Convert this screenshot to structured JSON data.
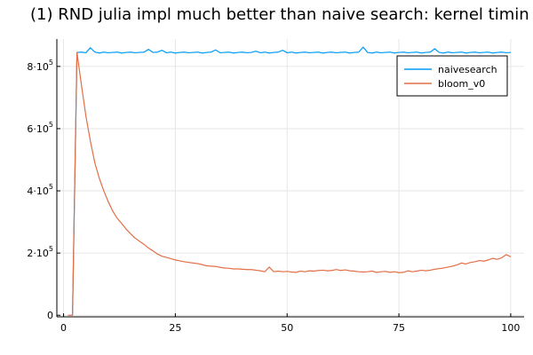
{
  "chart_data": {
    "type": "line",
    "title": "(1) RND julia impl much better than naive search: kernel timin",
    "xlabel": "",
    "ylabel": "",
    "xlim": [
      -1.5,
      103
    ],
    "ylim": [
      -5000,
      888000
    ],
    "x_ticks": [
      {
        "value": 0,
        "label": "0"
      },
      {
        "value": 25,
        "label": "25"
      },
      {
        "value": 50,
        "label": "50"
      },
      {
        "value": 75,
        "label": "75"
      },
      {
        "value": 100,
        "label": "100"
      }
    ],
    "y_ticks": [
      {
        "value": 0,
        "base": "0",
        "exp": ""
      },
      {
        "value": 200000,
        "base": "2·10",
        "exp": "5"
      },
      {
        "value": 400000,
        "base": "4·10",
        "exp": "5"
      },
      {
        "value": 600000,
        "base": "6·10",
        "exp": "5"
      },
      {
        "value": 800000,
        "base": "8·10",
        "exp": "5"
      }
    ],
    "grid": true,
    "legend_position": "top-right",
    "series": [
      {
        "name": "naivesearch",
        "color": "#009AFA",
        "points": [
          [
            2,
            0
          ],
          [
            3,
            845000
          ],
          [
            4,
            846000
          ],
          [
            5,
            844000
          ],
          [
            6,
            860000
          ],
          [
            7,
            846000
          ],
          [
            8,
            843000
          ],
          [
            9,
            846000
          ],
          [
            10,
            844000
          ],
          [
            11,
            845000
          ],
          [
            12,
            846000
          ],
          [
            13,
            843000
          ],
          [
            14,
            845000
          ],
          [
            15,
            846000
          ],
          [
            16,
            844000
          ],
          [
            17,
            845000
          ],
          [
            18,
            846000
          ],
          [
            19,
            855000
          ],
          [
            20,
            845000
          ],
          [
            21,
            846000
          ],
          [
            22,
            852000
          ],
          [
            23,
            844000
          ],
          [
            24,
            846000
          ],
          [
            25,
            843000
          ],
          [
            26,
            845000
          ],
          [
            27,
            846000
          ],
          [
            28,
            844000
          ],
          [
            29,
            845000
          ],
          [
            30,
            846000
          ],
          [
            31,
            843000
          ],
          [
            32,
            845000
          ],
          [
            33,
            846000
          ],
          [
            34,
            853000
          ],
          [
            35,
            844000
          ],
          [
            36,
            845000
          ],
          [
            37,
            846000
          ],
          [
            38,
            843000
          ],
          [
            39,
            845000
          ],
          [
            40,
            846000
          ],
          [
            41,
            844000
          ],
          [
            42,
            845000
          ],
          [
            43,
            849000
          ],
          [
            44,
            844000
          ],
          [
            45,
            846000
          ],
          [
            46,
            843000
          ],
          [
            47,
            845000
          ],
          [
            48,
            846000
          ],
          [
            49,
            852000
          ],
          [
            50,
            844000
          ],
          [
            51,
            846000
          ],
          [
            52,
            843000
          ],
          [
            53,
            845000
          ],
          [
            54,
            846000
          ],
          [
            55,
            844000
          ],
          [
            56,
            845000
          ],
          [
            57,
            846000
          ],
          [
            58,
            843000
          ],
          [
            59,
            845000
          ],
          [
            60,
            846000
          ],
          [
            61,
            844000
          ],
          [
            62,
            845000
          ],
          [
            63,
            846000
          ],
          [
            64,
            843000
          ],
          [
            65,
            845000
          ],
          [
            66,
            846000
          ],
          [
            67,
            862000
          ],
          [
            68,
            845000
          ],
          [
            69,
            843000
          ],
          [
            70,
            846000
          ],
          [
            71,
            844000
          ],
          [
            72,
            845000
          ],
          [
            73,
            846000
          ],
          [
            74,
            843000
          ],
          [
            75,
            845000
          ],
          [
            76,
            846000
          ],
          [
            77,
            844000
          ],
          [
            78,
            845000
          ],
          [
            79,
            846000
          ],
          [
            80,
            843000
          ],
          [
            81,
            845000
          ],
          [
            82,
            846000
          ],
          [
            83,
            857000
          ],
          [
            84,
            845000
          ],
          [
            85,
            843000
          ],
          [
            86,
            846000
          ],
          [
            87,
            844000
          ],
          [
            88,
            845000
          ],
          [
            89,
            846000
          ],
          [
            90,
            843000
          ],
          [
            91,
            845000
          ],
          [
            92,
            846000
          ],
          [
            93,
            844000
          ],
          [
            94,
            845000
          ],
          [
            95,
            846000
          ],
          [
            96,
            843000
          ],
          [
            97,
            845000
          ],
          [
            98,
            846000
          ],
          [
            99,
            844000
          ],
          [
            100,
            845000
          ]
        ]
      },
      {
        "name": "bloom_v0",
        "color": "#E26F46",
        "points": [
          [
            1,
            0
          ],
          [
            2,
            0
          ],
          [
            3,
            845000
          ],
          [
            4,
            740000
          ],
          [
            5,
            640000
          ],
          [
            6,
            560000
          ],
          [
            7,
            490000
          ],
          [
            8,
            440000
          ],
          [
            9,
            400000
          ],
          [
            10,
            365000
          ],
          [
            11,
            335000
          ],
          [
            12,
            312000
          ],
          [
            13,
            295000
          ],
          [
            14,
            277000
          ],
          [
            15,
            262000
          ],
          [
            16,
            248000
          ],
          [
            17,
            238000
          ],
          [
            18,
            228000
          ],
          [
            19,
            216000
          ],
          [
            20,
            207000
          ],
          [
            21,
            197000
          ],
          [
            22,
            190000
          ],
          [
            23,
            186000
          ],
          [
            24,
            182000
          ],
          [
            25,
            178000
          ],
          [
            26,
            175000
          ],
          [
            27,
            172000
          ],
          [
            28,
            170000
          ],
          [
            29,
            168000
          ],
          [
            30,
            166000
          ],
          [
            31,
            163000
          ],
          [
            32,
            159000
          ],
          [
            33,
            158000
          ],
          [
            34,
            157000
          ],
          [
            35,
            154000
          ],
          [
            36,
            152000
          ],
          [
            37,
            151000
          ],
          [
            38,
            149000
          ],
          [
            39,
            149000
          ],
          [
            40,
            148000
          ],
          [
            41,
            147000
          ],
          [
            42,
            147000
          ],
          [
            43,
            145000
          ],
          [
            44,
            143000
          ],
          [
            45,
            140000
          ],
          [
            46,
            155000
          ],
          [
            47,
            140000
          ],
          [
            48,
            142000
          ],
          [
            49,
            140000
          ],
          [
            50,
            141000
          ],
          [
            51,
            139000
          ],
          [
            52,
            138000
          ],
          [
            53,
            142000
          ],
          [
            54,
            140000
          ],
          [
            55,
            143000
          ],
          [
            56,
            142000
          ],
          [
            57,
            144000
          ],
          [
            58,
            145000
          ],
          [
            59,
            143000
          ],
          [
            60,
            144000
          ],
          [
            61,
            147000
          ],
          [
            62,
            144000
          ],
          [
            63,
            146000
          ],
          [
            64,
            143000
          ],
          [
            65,
            142000
          ],
          [
            66,
            140000
          ],
          [
            67,
            139000
          ],
          [
            68,
            140000
          ],
          [
            69,
            142000
          ],
          [
            70,
            138000
          ],
          [
            71,
            140000
          ],
          [
            72,
            141000
          ],
          [
            73,
            138000
          ],
          [
            74,
            140000
          ],
          [
            75,
            137000
          ],
          [
            76,
            138000
          ],
          [
            77,
            143000
          ],
          [
            78,
            140000
          ],
          [
            79,
            142000
          ],
          [
            80,
            145000
          ],
          [
            81,
            143000
          ],
          [
            82,
            145000
          ],
          [
            83,
            148000
          ],
          [
            84,
            150000
          ],
          [
            85,
            152000
          ],
          [
            86,
            155000
          ],
          [
            87,
            158000
          ],
          [
            88,
            162000
          ],
          [
            89,
            168000
          ],
          [
            90,
            165000
          ],
          [
            91,
            170000
          ],
          [
            92,
            172000
          ],
          [
            93,
            176000
          ],
          [
            94,
            174000
          ],
          [
            95,
            178000
          ],
          [
            96,
            183000
          ],
          [
            97,
            180000
          ],
          [
            98,
            185000
          ],
          [
            99,
            195000
          ],
          [
            100,
            188000
          ]
        ]
      }
    ]
  }
}
